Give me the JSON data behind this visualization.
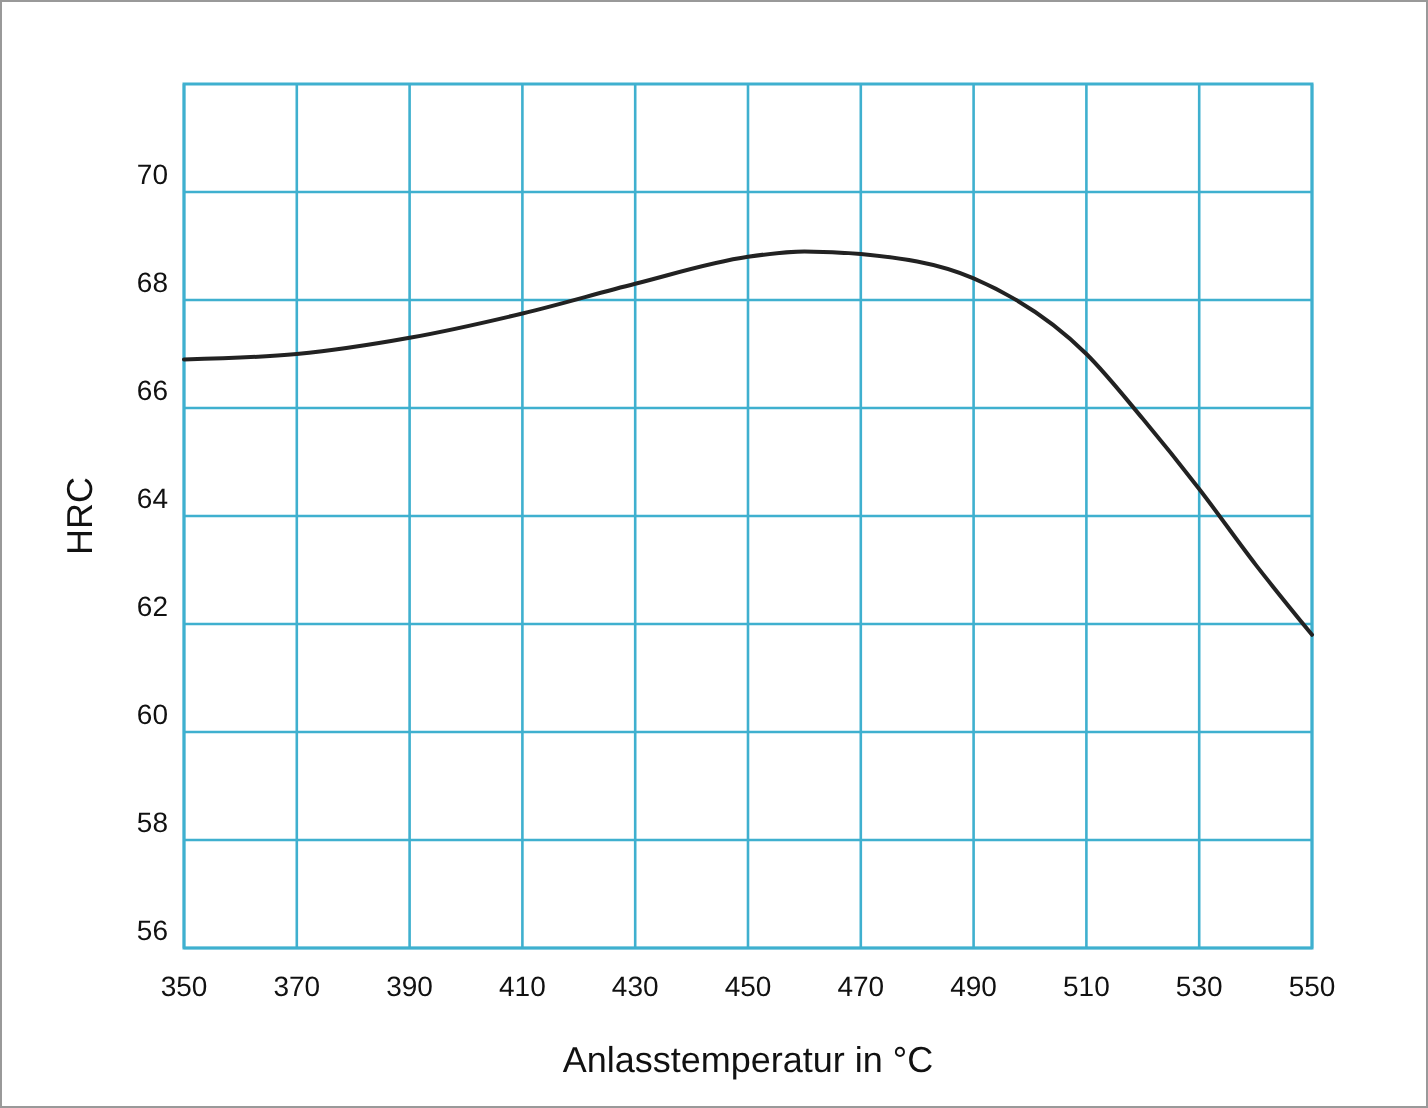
{
  "chart_data": {
    "type": "line",
    "xlabel": "Anlasstemperatur in °C",
    "ylabel": "HRC",
    "x": [
      350,
      370,
      390,
      410,
      430,
      450,
      460,
      470,
      490,
      510,
      520,
      530,
      540,
      550
    ],
    "series": [
      {
        "color": "#222222",
        "values": [
          66.9,
          67.0,
          67.3,
          67.75,
          68.3,
          68.8,
          68.9,
          68.85,
          68.4,
          67.0,
          65.8,
          64.5,
          63.1,
          61.8
        ]
      }
    ],
    "xlim": [
      350,
      550
    ],
    "xticks": [
      350,
      370,
      390,
      410,
      430,
      450,
      470,
      490,
      510,
      530,
      550
    ],
    "ylim": [
      56,
      72
    ],
    "yticks": [
      56,
      58,
      60,
      62,
      64,
      66,
      68,
      70
    ],
    "grid": true,
    "marker": "none",
    "line_style": "solid"
  }
}
